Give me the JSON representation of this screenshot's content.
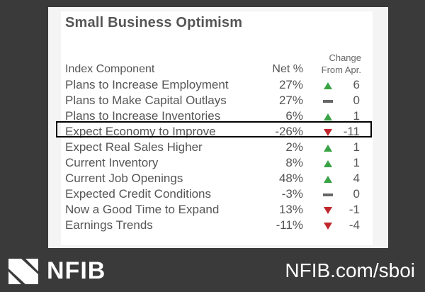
{
  "title": "Small Business Optimism",
  "headers": {
    "component": "Index Component",
    "net": "Net %",
    "change_line1": "Change",
    "change_line2": "From Apr."
  },
  "rows": [
    {
      "label": "Plans to Increase Employment",
      "net": "27%",
      "dir": "up",
      "change": "6"
    },
    {
      "label": "Plans to Make Capital Outlays",
      "net": "27%",
      "dir": "flat",
      "change": "0"
    },
    {
      "label": "Plans to Increase Inventories",
      "net": "6%",
      "dir": "up",
      "change": "1"
    },
    {
      "label": "Expect Economy to Improve",
      "net": "-26%",
      "dir": "down",
      "change": "-11",
      "highlighted": true
    },
    {
      "label": "Expect Real Sales Higher",
      "net": "2%",
      "dir": "up",
      "change": "1"
    },
    {
      "label": "Current Inventory",
      "net": "8%",
      "dir": "up",
      "change": "1"
    },
    {
      "label": "Current Job Openings",
      "net": "48%",
      "dir": "up",
      "change": "4"
    },
    {
      "label": "Expected Credit Conditions",
      "net": "-3%",
      "dir": "flat",
      "change": "0"
    },
    {
      "label": "Now a Good Time to Expand",
      "net": "13%",
      "dir": "down",
      "change": "-1"
    },
    {
      "label": "Earnings Trends",
      "net": "-11%",
      "dir": "down",
      "change": "-4"
    }
  ],
  "footer": {
    "logo_text": "NFIB",
    "url": "NFIB.com/sboi"
  },
  "colors": {
    "up": "#3aa346",
    "down": "#c0272d",
    "flat": "#666666"
  }
}
